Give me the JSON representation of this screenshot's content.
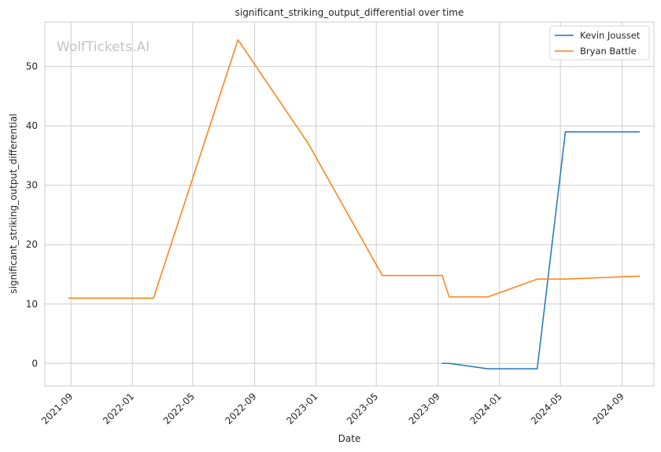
{
  "chart_data": {
    "type": "line",
    "title": "significant_striking_output_differential over time",
    "xlabel": "Date",
    "ylabel": "significant_striking_output_differential",
    "watermark": "WolfTickets.AI",
    "x_ticks": [
      "2021-09",
      "2022-01",
      "2022-05",
      "2022-09",
      "2023-01",
      "2023-05",
      "2023-09",
      "2024-01",
      "2024-05",
      "2024-09"
    ],
    "y_ticks": [
      0,
      10,
      20,
      30,
      40,
      50
    ],
    "xlim": [
      "2021-07-11",
      "2024-11-03"
    ],
    "ylim": [
      -3.8,
      57.5
    ],
    "grid": true,
    "legend_position": "top-right",
    "series": [
      {
        "name": "Kevin Jousset",
        "color": "#1f77b4",
        "points": [
          {
            "x": "2023-09-09",
            "y": 0
          },
          {
            "x": "2023-09-23",
            "y": 0
          },
          {
            "x": "2023-12-09",
            "y": -0.9
          },
          {
            "x": "2024-03-16",
            "y": -0.9
          },
          {
            "x": "2024-05-11",
            "y": 39
          },
          {
            "x": "2024-10-05",
            "y": 39
          }
        ]
      },
      {
        "name": "Bryan Battle",
        "color": "#ff7f0e",
        "points": [
          {
            "x": "2021-08-28",
            "y": 11
          },
          {
            "x": "2022-02-12",
            "y": 11
          },
          {
            "x": "2022-07-30",
            "y": 54.5
          },
          {
            "x": "2022-12-17",
            "y": 37
          },
          {
            "x": "2023-05-13",
            "y": 14.8
          },
          {
            "x": "2023-09-09",
            "y": 14.8
          },
          {
            "x": "2023-09-23",
            "y": 11.2
          },
          {
            "x": "2023-12-09",
            "y": 11.2
          },
          {
            "x": "2024-03-16",
            "y": 14.2
          },
          {
            "x": "2024-05-11",
            "y": 14.2
          },
          {
            "x": "2024-10-05",
            "y": 14.7
          }
        ]
      }
    ]
  }
}
